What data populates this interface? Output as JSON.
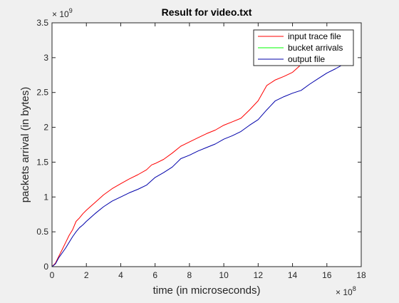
{
  "chart_data": {
    "type": "line",
    "title": "Result for video.txt",
    "xlabel": "time (in microseconds)",
    "ylabel": "packets arrival (in bytes)",
    "xlim": [
      0,
      1800000000
    ],
    "ylim": [
      0,
      3500000000
    ],
    "x_ticks": [
      0,
      2,
      4,
      6,
      8,
      10,
      12,
      14,
      16,
      18
    ],
    "y_ticks": [
      0,
      0.5,
      1,
      1.5,
      2,
      2.5,
      3,
      3.5
    ],
    "x_tick_labels": [
      "0",
      "2",
      "4",
      "6",
      "8",
      "10",
      "12",
      "14",
      "16",
      "18"
    ],
    "y_tick_labels": [
      "0",
      "0.5",
      "1",
      "1.5",
      "2",
      "2.5",
      "3",
      "3.5"
    ],
    "x_exponent": {
      "base": "× 10",
      "power": "8"
    },
    "y_exponent": {
      "base": "× 10",
      "power": "9"
    },
    "grid": false,
    "legend_position": "top-right",
    "series": [
      {
        "name": "input trace file",
        "color": "#ff0000",
        "x": [
          0,
          20000000,
          40000000,
          60000000,
          80000000,
          100000000,
          120000000,
          140000000,
          160000000,
          180000000,
          200000000,
          250000000,
          300000000,
          350000000,
          400000000,
          450000000,
          500000000,
          550000000,
          580000000,
          600000000,
          650000000,
          700000000,
          750000000,
          800000000,
          850000000,
          900000000,
          950000000,
          1000000000,
          1050000000,
          1100000000,
          1150000000,
          1200000000,
          1250000000,
          1300000000,
          1350000000,
          1400000000,
          1450000000
        ],
        "y": [
          0,
          50000000,
          150000000,
          250000000,
          350000000,
          450000000,
          530000000,
          650000000,
          700000000,
          760000000,
          810000000,
          920000000,
          1030000000,
          1120000000,
          1190000000,
          1260000000,
          1320000000,
          1390000000,
          1460000000,
          1480000000,
          1540000000,
          1630000000,
          1730000000,
          1790000000,
          1850000000,
          1910000000,
          1960000000,
          2030000000,
          2080000000,
          2130000000,
          2250000000,
          2380000000,
          2600000000,
          2680000000,
          2730000000,
          2790000000,
          2900000000
        ]
      },
      {
        "name": "bucket arrivals",
        "color": "#00ff00",
        "x": [],
        "y": []
      },
      {
        "name": "output file",
        "color": "#0000aa",
        "x": [
          0,
          20000000,
          40000000,
          60000000,
          80000000,
          100000000,
          120000000,
          140000000,
          160000000,
          180000000,
          200000000,
          250000000,
          300000000,
          350000000,
          400000000,
          450000000,
          500000000,
          550000000,
          600000000,
          650000000,
          700000000,
          750000000,
          800000000,
          850000000,
          900000000,
          950000000,
          1000000000,
          1050000000,
          1100000000,
          1150000000,
          1200000000,
          1250000000,
          1300000000,
          1350000000,
          1400000000,
          1450000000,
          1500000000,
          1550000000,
          1600000000,
          1650000000,
          1700000000
        ],
        "y": [
          0,
          40000000,
          130000000,
          200000000,
          270000000,
          350000000,
          430000000,
          500000000,
          560000000,
          600000000,
          650000000,
          760000000,
          860000000,
          940000000,
          1000000000,
          1060000000,
          1110000000,
          1170000000,
          1280000000,
          1350000000,
          1430000000,
          1550000000,
          1600000000,
          1660000000,
          1710000000,
          1760000000,
          1830000000,
          1880000000,
          1940000000,
          2030000000,
          2110000000,
          2250000000,
          2380000000,
          2440000000,
          2490000000,
          2530000000,
          2620000000,
          2700000000,
          2780000000,
          2840000000,
          2910000000
        ]
      }
    ]
  }
}
